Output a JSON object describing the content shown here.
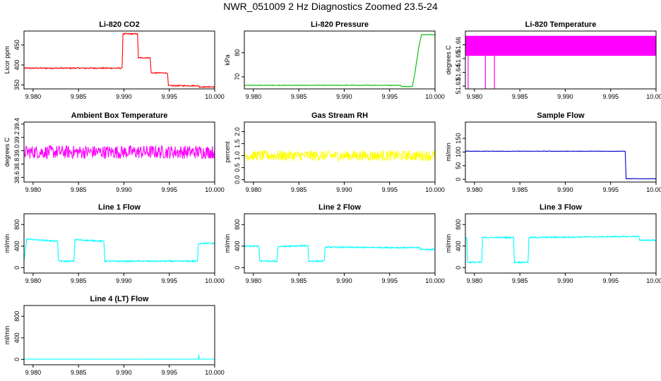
{
  "main_title": "NWR_051009  2 Hz Diagnostics Zoomed 23.5-24",
  "chart_data": [
    {
      "type": "line",
      "title": "Li-820 CO2",
      "ylabel": "Licor ppm",
      "color": "#ff0000",
      "xlim": [
        9.979,
        10.0
      ],
      "ylim": [
        340,
        485
      ],
      "xticks": [
        9.98,
        9.985,
        9.99,
        9.995,
        10.0
      ],
      "xtick_labels": [
        "9.980",
        "9.985",
        "9.990",
        "9.995",
        "10.000"
      ],
      "yticks": [
        350,
        400,
        450
      ],
      "ytick_labels": [
        "350",
        "400",
        "450"
      ],
      "series": [
        {
          "name": "CO2",
          "noise": 1.5,
          "x": [
            9.979,
            9.9898,
            9.9899,
            9.9915,
            9.9916,
            9.9929,
            9.993,
            9.9948,
            9.9949,
            9.9982,
            9.9983,
            10.0
          ],
          "values": [
            392,
            392,
            478,
            478,
            418,
            418,
            380,
            380,
            348,
            348,
            345,
            345
          ]
        }
      ]
    },
    {
      "type": "line",
      "title": "Li-820 Pressure",
      "ylabel": "kPa",
      "color": "#00bb00",
      "xlim": [
        9.979,
        10.0
      ],
      "ylim": [
        65,
        89
      ],
      "xticks": [
        9.98,
        9.985,
        9.99,
        9.995,
        10.0
      ],
      "xtick_labels": [
        "9.980",
        "9.985",
        "9.990",
        "9.995",
        "10.000"
      ],
      "yticks": [
        70,
        80
      ],
      "ytick_labels": [
        "70",
        "80"
      ],
      "series": [
        {
          "name": "Pressure",
          "noise": 0.1,
          "x": [
            9.979,
            9.9962,
            9.9963,
            9.9975,
            9.9978,
            9.9982,
            9.9985,
            10.0
          ],
          "values": [
            66.5,
            66.5,
            66.0,
            66.0,
            72,
            82,
            87.5,
            87.5
          ]
        }
      ]
    },
    {
      "type": "line",
      "title": "Li-820 Temperature",
      "ylabel": "degrees C",
      "color": "#ff00ff",
      "xlim": [
        9.979,
        10.0
      ],
      "ylim": [
        51.628,
        51.67
      ],
      "xticks": [
        9.98,
        9.985,
        9.99,
        9.995,
        10.0
      ],
      "xtick_labels": [
        "9.980",
        "9.985",
        "9.990",
        "9.995",
        "10.000"
      ],
      "yticks": [
        51.63,
        51.64,
        51.65,
        51.66
      ],
      "ytick_labels": [
        "51.63",
        "51.64",
        "51.65",
        "51.66"
      ],
      "series": [
        {
          "name": "Temperature",
          "noise": 0,
          "x": [
            9.979,
            10.0
          ],
          "values": [
            51.652,
            51.652
          ],
          "band": [
            51.652,
            51.6665
          ],
          "spikes": [
            [
              9.9793,
              51.628
            ],
            [
              9.9812,
              51.628
            ],
            [
              9.9822,
              51.628
            ]
          ]
        }
      ]
    },
    {
      "type": "line",
      "title": "Ambient Box Temperature",
      "ylabel": "degrees C",
      "color": "#ff00ff",
      "xlim": [
        9.979,
        10.0
      ],
      "ylim": [
        38.53,
        39.43
      ],
      "xticks": [
        9.98,
        9.985,
        9.99,
        9.995,
        10.0
      ],
      "xtick_labels": [
        "9.980",
        "9.985",
        "9.990",
        "9.995",
        "10.000"
      ],
      "yticks": [
        38.6,
        38.8,
        39.0,
        39.2,
        39.4
      ],
      "ytick_labels": [
        "38.6",
        "38.8",
        "39.0",
        "39.2",
        "39.4"
      ],
      "series": [
        {
          "name": "Ambient",
          "noise": 0.1,
          "x": [
            9.979,
            10.0
          ],
          "values": [
            38.98,
            38.98
          ]
        }
      ]
    },
    {
      "type": "line",
      "title": "Gas Stream RH",
      "ylabel": "percent",
      "color": "#ffff00",
      "xlim": [
        9.979,
        10.0
      ],
      "ylim": [
        -0.1,
        2.4
      ],
      "xticks": [
        9.98,
        9.985,
        9.99,
        9.995,
        10.0
      ],
      "xtick_labels": [
        "9.980",
        "9.985",
        "9.990",
        "9.995",
        "10.000"
      ],
      "yticks": [
        0.0,
        0.5,
        1.0,
        1.5,
        2.0
      ],
      "ytick_labels": [
        "0.0",
        "0.5",
        "1.0",
        "1.5",
        "2.0"
      ],
      "series": [
        {
          "name": "RH",
          "noise": 0.22,
          "x": [
            9.979,
            10.0
          ],
          "values": [
            1.0,
            1.0
          ]
        }
      ]
    },
    {
      "type": "line",
      "title": "Sample Flow",
      "ylabel": "ml/min",
      "color": "#0000cc",
      "xlim": [
        9.979,
        10.0
      ],
      "ylim": [
        -10,
        210
      ],
      "xticks": [
        9.98,
        9.985,
        9.99,
        9.995,
        10.0
      ],
      "xtick_labels": [
        "9.980",
        "9.985",
        "9.990",
        "9.995",
        "10.000"
      ],
      "yticks": [
        0,
        50,
        100,
        150
      ],
      "ytick_labels": [
        "0",
        "50",
        "100",
        "150"
      ],
      "series": [
        {
          "name": "Sample Flow",
          "noise": 0.8,
          "x": [
            9.979,
            9.9966,
            9.9967,
            10.0
          ],
          "values": [
            103,
            103,
            2,
            2
          ]
        }
      ]
    },
    {
      "type": "line",
      "title": "Line 1 Flow",
      "ylabel": "ml/min",
      "color": "#00ffff",
      "xlim": [
        9.979,
        10.0
      ],
      "ylim": [
        -100,
        1000
      ],
      "xticks": [
        9.98,
        9.985,
        9.99,
        9.995,
        10.0
      ],
      "xtick_labels": [
        "9.980",
        "9.985",
        "9.990",
        "9.995",
        "10.000"
      ],
      "yticks": [
        0,
        400,
        800
      ],
      "ytick_labels": [
        "0",
        "400",
        "800"
      ],
      "series": [
        {
          "name": "Line 1",
          "noise": 12,
          "x": [
            9.979,
            9.9793,
            9.9827,
            9.9828,
            9.9845,
            9.9846,
            9.9878,
            9.9879,
            9.9981,
            9.9982,
            10.0
          ],
          "values": [
            120,
            530,
            490,
            120,
            120,
            520,
            490,
            120,
            120,
            450,
            450
          ]
        }
      ]
    },
    {
      "type": "line",
      "title": "Line 2 Flow",
      "ylabel": "ml/min",
      "color": "#00ffff",
      "xlim": [
        9.979,
        10.0
      ],
      "ylim": [
        -100,
        1000
      ],
      "xticks": [
        9.98,
        9.985,
        9.99,
        9.995,
        10.0
      ],
      "xtick_labels": [
        "9.980",
        "9.985",
        "9.990",
        "9.995",
        "10.000"
      ],
      "yticks": [
        0,
        400,
        800
      ],
      "ytick_labels": [
        "0",
        "400",
        "800"
      ],
      "series": [
        {
          "name": "Line 2",
          "noise": 12,
          "x": [
            9.979,
            9.9806,
            9.9807,
            9.9826,
            9.9827,
            9.986,
            9.9861,
            9.9878,
            9.9879,
            9.9983,
            9.9984,
            10.0
          ],
          "values": [
            400,
            400,
            120,
            120,
            390,
            410,
            120,
            120,
            380,
            370,
            340,
            340
          ]
        }
      ]
    },
    {
      "type": "line",
      "title": "Line 3 Flow",
      "ylabel": "ml/min",
      "color": "#00ffff",
      "xlim": [
        9.979,
        10.0
      ],
      "ylim": [
        -100,
        1000
      ],
      "xticks": [
        9.98,
        9.985,
        9.99,
        9.995,
        10.0
      ],
      "xtick_labels": [
        "9.980",
        "9.985",
        "9.990",
        "9.995",
        "10.000"
      ],
      "yticks": [
        0,
        400,
        800
      ],
      "ytick_labels": [
        "0",
        "400",
        "800"
      ],
      "series": [
        {
          "name": "Line 3",
          "noise": 12,
          "x": [
            9.979,
            9.97915,
            9.97925,
            9.9808,
            9.9809,
            9.9843,
            9.9844,
            9.9859,
            9.986,
            9.9981,
            9.9982,
            10.0
          ],
          "values": [
            550,
            550,
            100,
            100,
            560,
            560,
            100,
            100,
            560,
            580,
            510,
            510
          ]
        }
      ]
    },
    {
      "type": "line",
      "title": "Line 4 (LT) Flow",
      "ylabel": "ml/min",
      "color": "#00ffff",
      "xlim": [
        9.979,
        10.0
      ],
      "ylim": [
        -100,
        1000
      ],
      "xticks": [
        9.98,
        9.985,
        9.99,
        9.995,
        10.0
      ],
      "xtick_labels": [
        "9.980",
        "9.985",
        "9.990",
        "9.995",
        "10.000"
      ],
      "yticks": [
        0,
        400,
        800
      ],
      "ytick_labels": [
        "0",
        "400",
        "800"
      ],
      "series": [
        {
          "name": "Line 4",
          "noise": 2,
          "x": [
            9.979,
            9.9982,
            9.99825,
            9.9983,
            9.99835,
            10.0
          ],
          "values": [
            5,
            5,
            90,
            15,
            5,
            5
          ]
        }
      ]
    }
  ]
}
